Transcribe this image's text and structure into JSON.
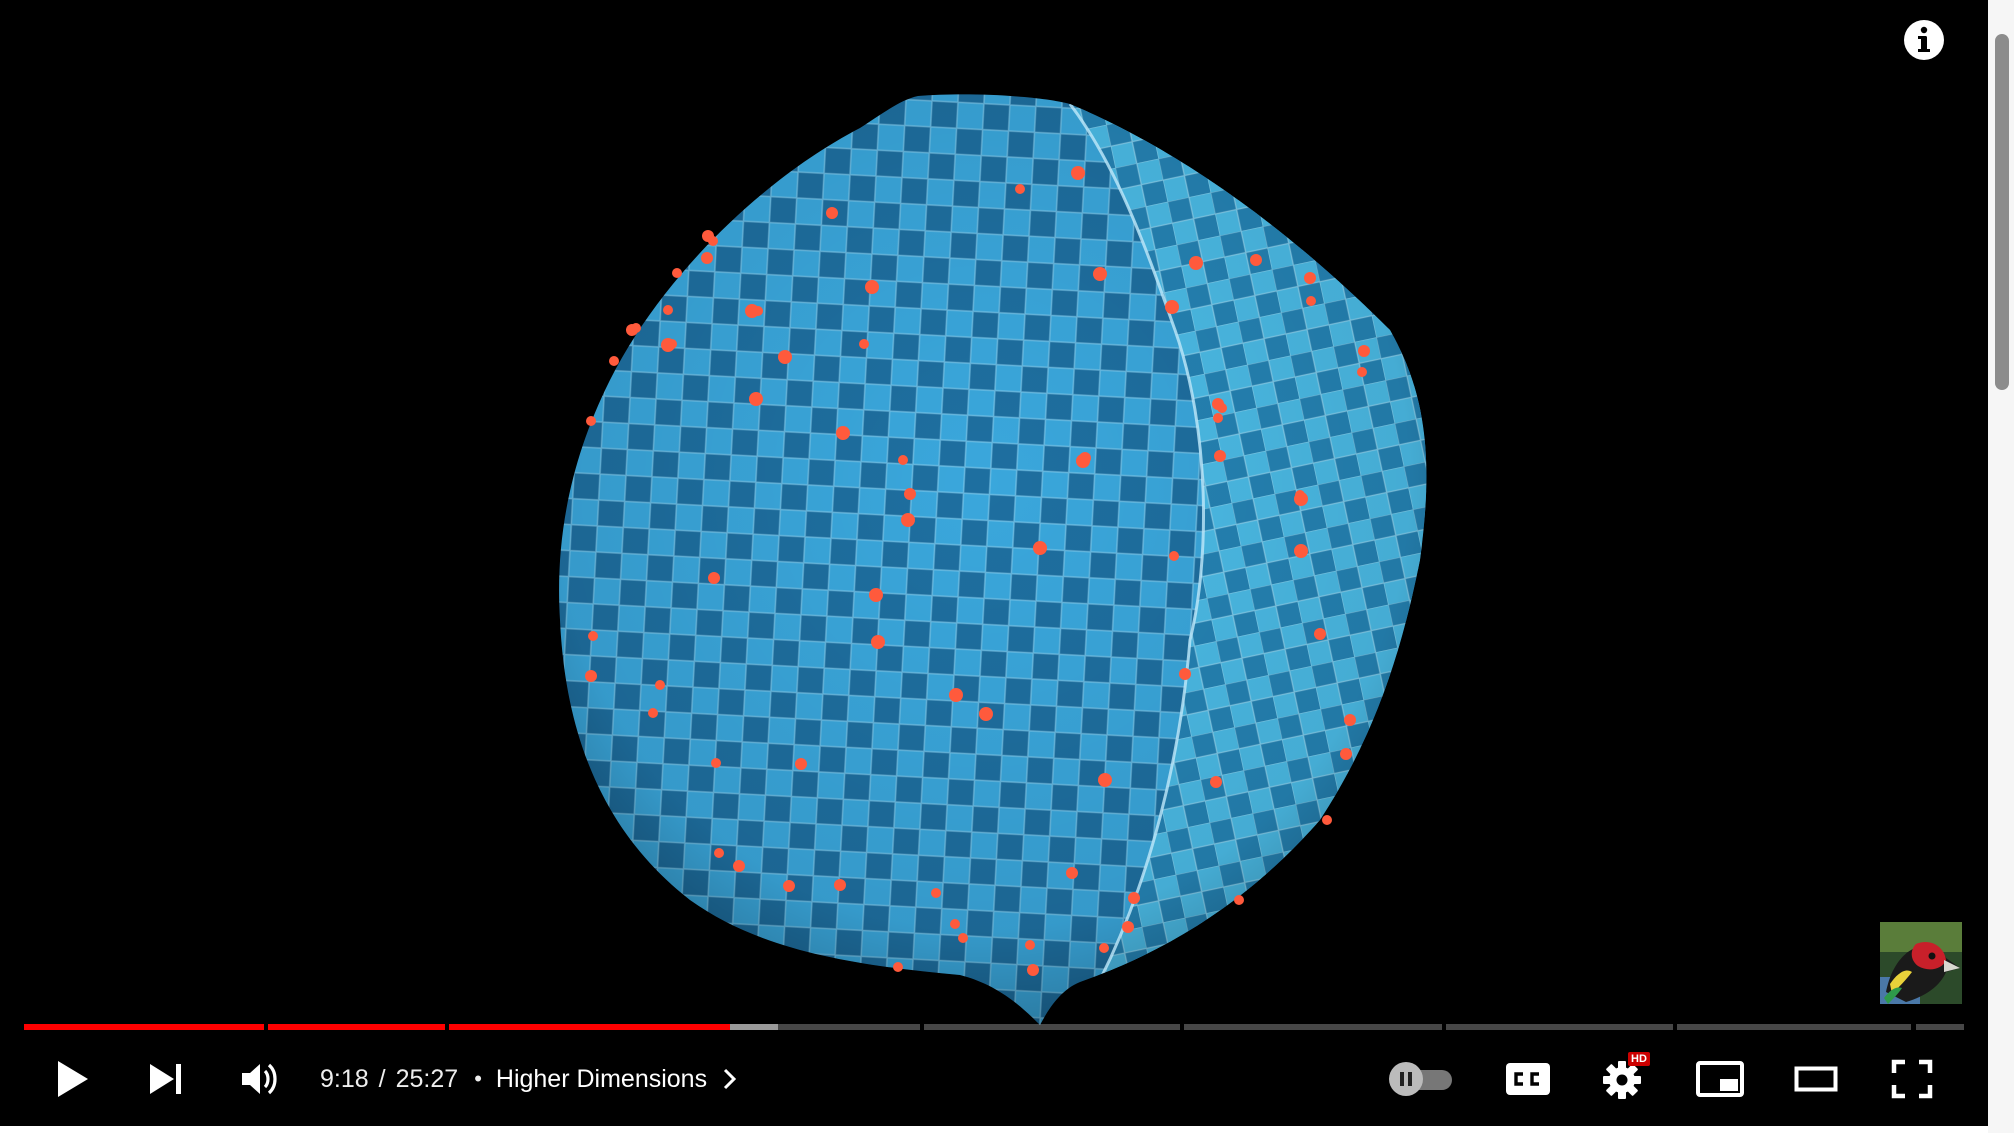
{
  "player": {
    "time": {
      "current": "9:18",
      "separator": "/",
      "duration": "25:27",
      "progress_fraction": 0.365,
      "buffered_fraction": 0.39
    },
    "chapter": {
      "bullet": "•",
      "title": "Higher Dimensions"
    },
    "chapter_fractions": [
      0.126,
      0.219,
      0.464,
      0.598,
      0.733,
      0.852,
      0.975,
      1.0
    ],
    "badges": {
      "settings_quality": "HD"
    },
    "colors": {
      "progress_played": "#ff0000",
      "quality_badge": "#cc0000",
      "sphere_tile_dark": "#1e6fa0",
      "sphere_tile_light": "#3aa7dc",
      "dots": "#ff5a3c"
    },
    "icons": {
      "info": "info-icon",
      "play": "play-icon",
      "next": "next-icon",
      "volume": "volume-icon",
      "autoplay": "autoplay-toggle-icon",
      "captions": "captions-icon",
      "settings": "gear-icon",
      "miniplayer": "miniplayer-icon",
      "theater": "theater-mode-icon",
      "fullscreen": "fullscreen-icon",
      "chevron": "chevron-right-icon"
    }
  }
}
